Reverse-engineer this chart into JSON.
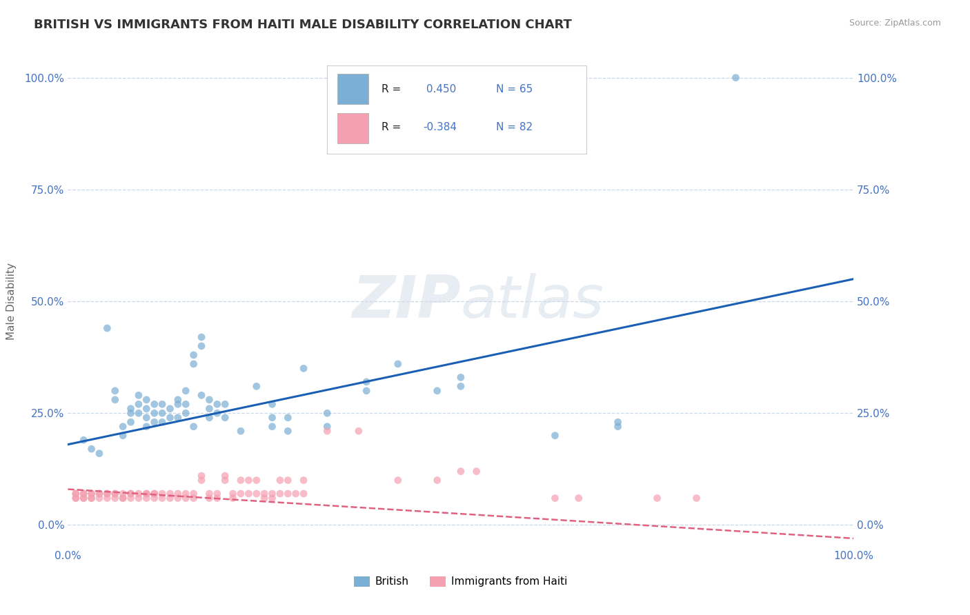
{
  "title": "BRITISH VS IMMIGRANTS FROM HAITI MALE DISABILITY CORRELATION CHART",
  "source_text": "Source: ZipAtlas.com",
  "ylabel": "Male Disability",
  "xlim": [
    0.0,
    1.0
  ],
  "ylim": [
    -0.05,
    1.05
  ],
  "ytick_labels": [
    "0.0%",
    "25.0%",
    "50.0%",
    "75.0%",
    "100.0%"
  ],
  "ytick_values": [
    0.0,
    0.25,
    0.5,
    0.75,
    1.0
  ],
  "xtick_labels": [
    "0.0%",
    "100.0%"
  ],
  "xtick_values": [
    0.0,
    1.0
  ],
  "grid_color": "#c8d8e8",
  "background_color": "#ffffff",
  "title_color": "#333333",
  "axis_color": "#4472c4",
  "british_color": "#7bafd4",
  "haiti_color": "#f4a0b0",
  "trendline_british_color": "#1a5fb4",
  "trendline_haiti_color": "#e06080",
  "watermark_color": "#d0dce8",
  "british_R": 0.45,
  "british_N": 65,
  "haiti_R": -0.384,
  "haiti_N": 82,
  "legend_british_label": "British",
  "legend_haiti_label": "Immigrants from Haiti",
  "british_trendline": [
    [
      0.0,
      0.18
    ],
    [
      1.0,
      0.55
    ]
  ],
  "haiti_trendline": [
    [
      0.0,
      0.08
    ],
    [
      1.0,
      -0.03
    ]
  ],
  "british_scatter": [
    [
      0.02,
      0.19
    ],
    [
      0.03,
      0.17
    ],
    [
      0.04,
      0.16
    ],
    [
      0.05,
      0.44
    ],
    [
      0.06,
      0.28
    ],
    [
      0.06,
      0.3
    ],
    [
      0.07,
      0.2
    ],
    [
      0.07,
      0.22
    ],
    [
      0.08,
      0.23
    ],
    [
      0.08,
      0.26
    ],
    [
      0.08,
      0.25
    ],
    [
      0.09,
      0.25
    ],
    [
      0.09,
      0.27
    ],
    [
      0.09,
      0.29
    ],
    [
      0.1,
      0.22
    ],
    [
      0.1,
      0.24
    ],
    [
      0.1,
      0.26
    ],
    [
      0.1,
      0.28
    ],
    [
      0.11,
      0.23
    ],
    [
      0.11,
      0.25
    ],
    [
      0.11,
      0.27
    ],
    [
      0.12,
      0.23
    ],
    [
      0.12,
      0.25
    ],
    [
      0.12,
      0.27
    ],
    [
      0.13,
      0.24
    ],
    [
      0.13,
      0.26
    ],
    [
      0.14,
      0.24
    ],
    [
      0.14,
      0.27
    ],
    [
      0.14,
      0.28
    ],
    [
      0.15,
      0.25
    ],
    [
      0.15,
      0.27
    ],
    [
      0.15,
      0.3
    ],
    [
      0.16,
      0.22
    ],
    [
      0.16,
      0.36
    ],
    [
      0.16,
      0.38
    ],
    [
      0.17,
      0.29
    ],
    [
      0.17,
      0.4
    ],
    [
      0.17,
      0.42
    ],
    [
      0.18,
      0.24
    ],
    [
      0.18,
      0.26
    ],
    [
      0.18,
      0.28
    ],
    [
      0.19,
      0.25
    ],
    [
      0.19,
      0.27
    ],
    [
      0.2,
      0.24
    ],
    [
      0.2,
      0.27
    ],
    [
      0.22,
      0.21
    ],
    [
      0.24,
      0.31
    ],
    [
      0.26,
      0.22
    ],
    [
      0.26,
      0.24
    ],
    [
      0.26,
      0.27
    ],
    [
      0.28,
      0.21
    ],
    [
      0.28,
      0.24
    ],
    [
      0.3,
      0.35
    ],
    [
      0.33,
      0.22
    ],
    [
      0.33,
      0.25
    ],
    [
      0.38,
      0.3
    ],
    [
      0.38,
      0.32
    ],
    [
      0.42,
      0.36
    ],
    [
      0.47,
      0.3
    ],
    [
      0.5,
      0.31
    ],
    [
      0.5,
      0.33
    ],
    [
      0.62,
      0.2
    ],
    [
      0.7,
      0.22
    ],
    [
      0.7,
      0.23
    ],
    [
      0.85,
      1.0
    ]
  ],
  "haiti_scatter": [
    [
      0.01,
      0.07
    ],
    [
      0.01,
      0.06
    ],
    [
      0.01,
      0.07
    ],
    [
      0.01,
      0.06
    ],
    [
      0.02,
      0.07
    ],
    [
      0.02,
      0.06
    ],
    [
      0.02,
      0.07
    ],
    [
      0.02,
      0.06
    ],
    [
      0.03,
      0.07
    ],
    [
      0.03,
      0.06
    ],
    [
      0.03,
      0.07
    ],
    [
      0.03,
      0.06
    ],
    [
      0.04,
      0.07
    ],
    [
      0.04,
      0.06
    ],
    [
      0.04,
      0.07
    ],
    [
      0.05,
      0.07
    ],
    [
      0.05,
      0.06
    ],
    [
      0.05,
      0.07
    ],
    [
      0.06,
      0.07
    ],
    [
      0.06,
      0.06
    ],
    [
      0.06,
      0.07
    ],
    [
      0.07,
      0.06
    ],
    [
      0.07,
      0.07
    ],
    [
      0.07,
      0.06
    ],
    [
      0.08,
      0.07
    ],
    [
      0.08,
      0.06
    ],
    [
      0.08,
      0.07
    ],
    [
      0.09,
      0.07
    ],
    [
      0.09,
      0.06
    ],
    [
      0.1,
      0.07
    ],
    [
      0.1,
      0.06
    ],
    [
      0.1,
      0.07
    ],
    [
      0.11,
      0.07
    ],
    [
      0.11,
      0.06
    ],
    [
      0.11,
      0.07
    ],
    [
      0.12,
      0.07
    ],
    [
      0.12,
      0.06
    ],
    [
      0.13,
      0.07
    ],
    [
      0.13,
      0.06
    ],
    [
      0.14,
      0.07
    ],
    [
      0.14,
      0.06
    ],
    [
      0.15,
      0.07
    ],
    [
      0.15,
      0.06
    ],
    [
      0.16,
      0.07
    ],
    [
      0.16,
      0.06
    ],
    [
      0.17,
      0.1
    ],
    [
      0.17,
      0.11
    ],
    [
      0.18,
      0.07
    ],
    [
      0.18,
      0.06
    ],
    [
      0.19,
      0.07
    ],
    [
      0.19,
      0.06
    ],
    [
      0.2,
      0.1
    ],
    [
      0.2,
      0.11
    ],
    [
      0.21,
      0.07
    ],
    [
      0.21,
      0.06
    ],
    [
      0.22,
      0.07
    ],
    [
      0.22,
      0.1
    ],
    [
      0.23,
      0.07
    ],
    [
      0.23,
      0.1
    ],
    [
      0.24,
      0.07
    ],
    [
      0.24,
      0.1
    ],
    [
      0.25,
      0.07
    ],
    [
      0.25,
      0.06
    ],
    [
      0.26,
      0.07
    ],
    [
      0.26,
      0.06
    ],
    [
      0.27,
      0.07
    ],
    [
      0.27,
      0.1
    ],
    [
      0.28,
      0.07
    ],
    [
      0.28,
      0.1
    ],
    [
      0.29,
      0.07
    ],
    [
      0.3,
      0.07
    ],
    [
      0.3,
      0.1
    ],
    [
      0.33,
      0.21
    ],
    [
      0.37,
      0.21
    ],
    [
      0.42,
      0.1
    ],
    [
      0.47,
      0.1
    ],
    [
      0.5,
      0.12
    ],
    [
      0.52,
      0.12
    ],
    [
      0.62,
      0.06
    ],
    [
      0.65,
      0.06
    ],
    [
      0.75,
      0.06
    ],
    [
      0.8,
      0.06
    ]
  ]
}
